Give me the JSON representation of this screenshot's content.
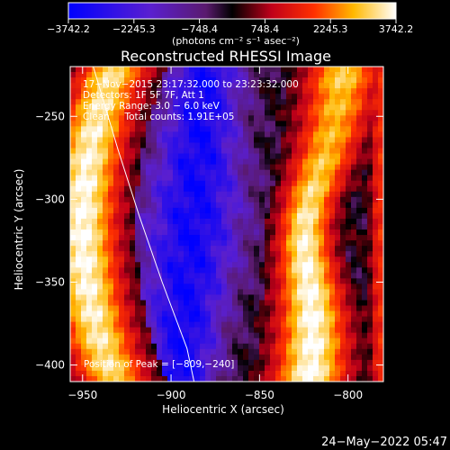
{
  "chart_data": {
    "type": "heatmap",
    "title": "Reconstructed RHESSI Image",
    "colorbar": {
      "ticks": [
        "−3742.2",
        "−2245.3",
        "−748.4",
        "748.4",
        "2245.3",
        "3742.2"
      ],
      "min": -3742.2,
      "max": 3742.2,
      "unit_label": "(photons cm⁻² s⁻¹ asec⁻²)",
      "colormap": "blue-purple-red-yellow-white"
    },
    "info_lines": [
      "17−Nov−2015 23:17:32.000 to 23:23:32.000",
      "Detectors: 1F 5F 7F, Att 1",
      "Energy Range: 3.0 − 6.0 keV",
      "Clean     Total counts: 1.91E+05"
    ],
    "xlabel": "Heliocentric X (arcsec)",
    "ylabel": "Heliocentric Y (arcsec)",
    "xlim": [
      -957,
      -780
    ],
    "ylim": [
      -410,
      -220
    ],
    "xticks": [
      {
        "value": -950,
        "label": "−950"
      },
      {
        "value": -900,
        "label": "−900"
      },
      {
        "value": -850,
        "label": "−850"
      },
      {
        "value": -800,
        "label": "−800"
      }
    ],
    "yticks": [
      {
        "value": -250,
        "label": "−250"
      },
      {
        "value": -300,
        "label": "−300"
      },
      {
        "value": -350,
        "label": "−350"
      },
      {
        "value": -400,
        "label": "−400"
      }
    ],
    "peak_label": "Position of Peak = [−809,−240]",
    "peak": [
      -809,
      -240
    ],
    "limb_curve": [
      [
        -944,
        -220
      ],
      [
        -930,
        -270
      ],
      [
        -918,
        -310
      ],
      [
        -905,
        -350
      ],
      [
        -891,
        -390
      ],
      [
        -887,
        -410
      ]
    ],
    "structure": {
      "description_bands": [
        {
          "x_center": -948,
          "y_modulation": 10,
          "intensity": 1.0,
          "width": 16
        },
        {
          "x_center": -815,
          "y_modulation": -8,
          "intensity": 1.0,
          "width": 22
        },
        {
          "x_center": -783,
          "y_modulation": 0,
          "intensity": 0.55,
          "width": 6
        }
      ]
    }
  },
  "timestamp": "24−May−2022 05:47"
}
